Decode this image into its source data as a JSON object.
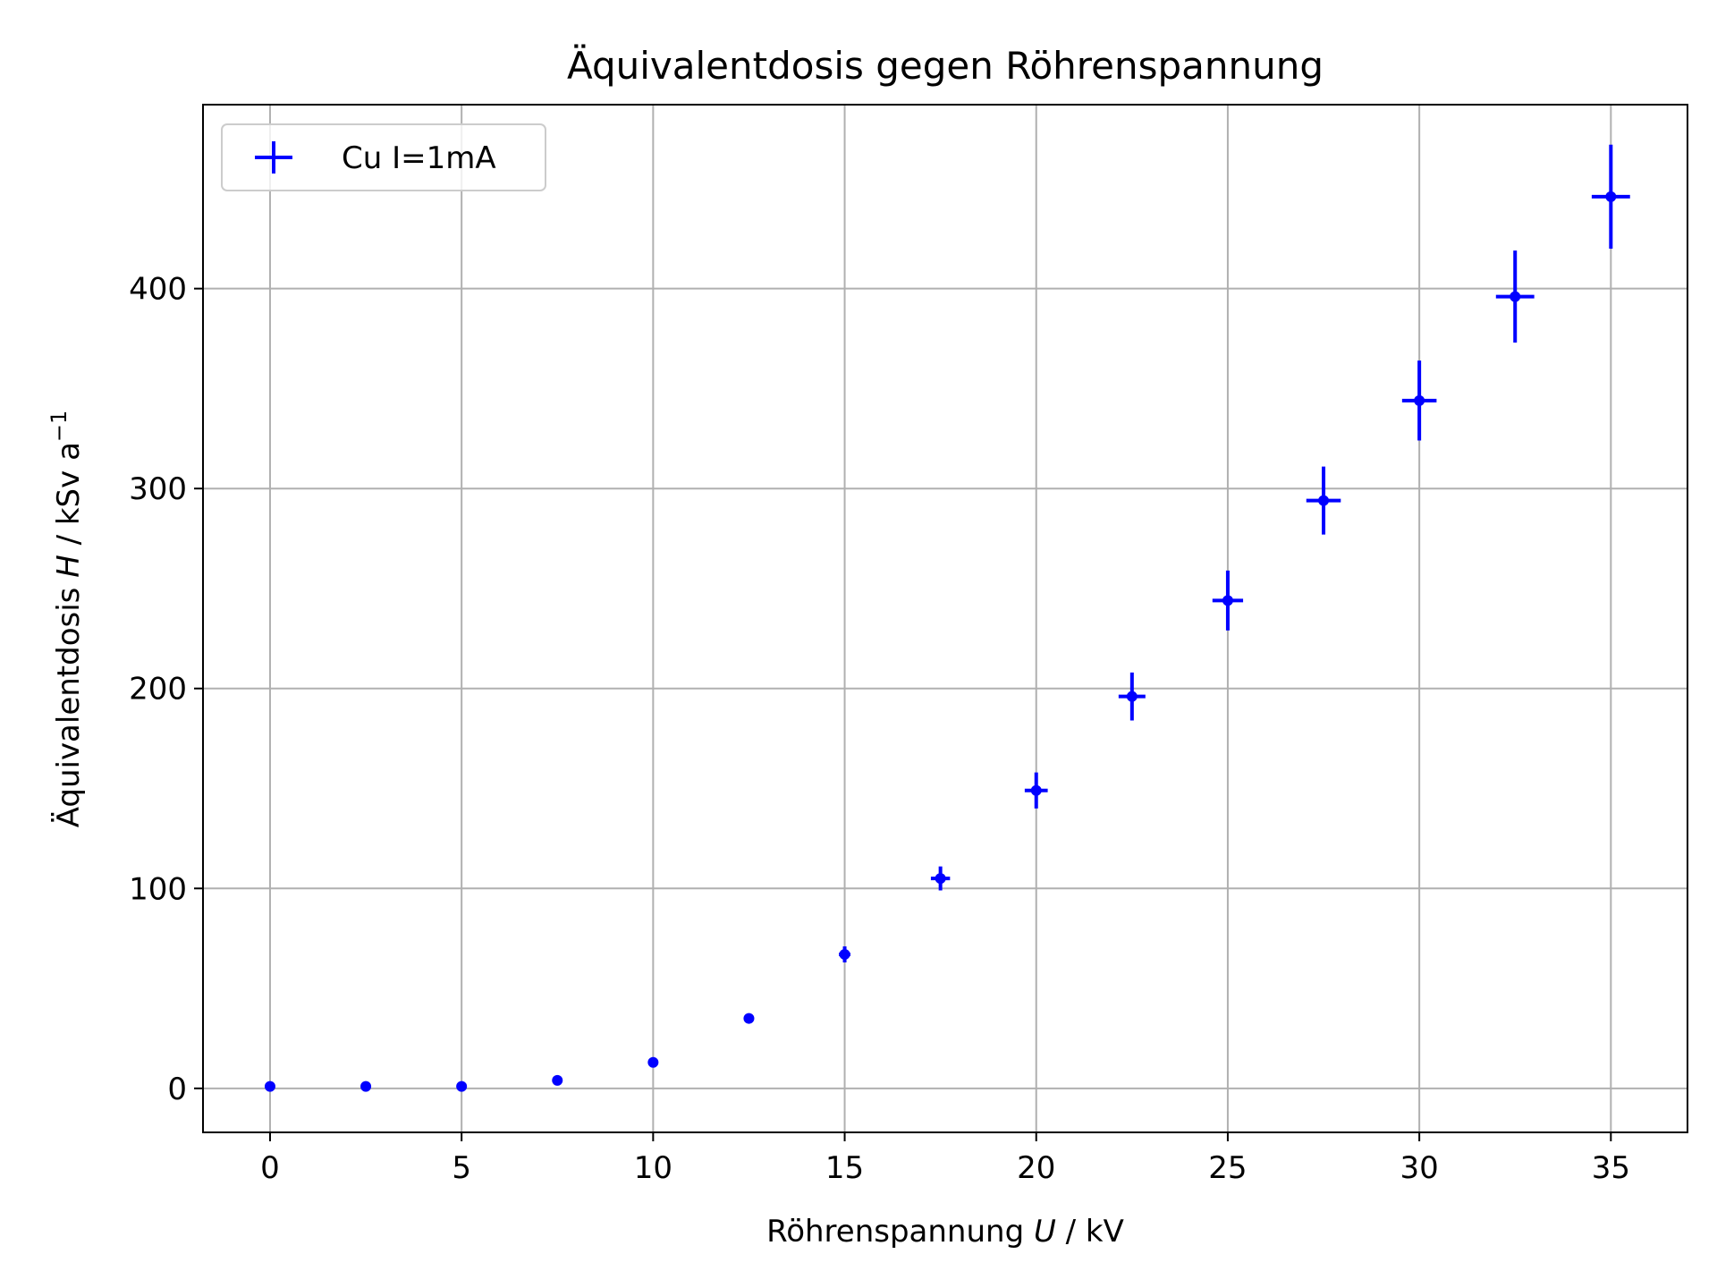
{
  "chart_data": {
    "type": "scatter",
    "title": "Äquivalentdosis gegen Röhrenspannung",
    "xlabel": {
      "prefix": "Röhrenspannung ",
      "symbol": "U",
      "suffix": " / kV"
    },
    "ylabel": {
      "prefix": "Äquivalentdosis ",
      "symbol": "H",
      "suffix": " / kSv a",
      "sup": "−1"
    },
    "xlim": [
      -1.75,
      37.0
    ],
    "ylim": [
      -22,
      492
    ],
    "xticks": [
      0,
      5,
      10,
      15,
      20,
      25,
      30,
      35
    ],
    "yticks": [
      0,
      100,
      200,
      300,
      400
    ],
    "grid": true,
    "legend_position": "upper-left",
    "color": "#0000ff",
    "series": [
      {
        "name": "Cu I=1mA",
        "x": [
          0,
          2.5,
          5,
          7.5,
          10,
          12.5,
          15,
          17.5,
          20,
          22.5,
          25,
          27.5,
          30,
          32.5,
          35
        ],
        "y": [
          1,
          1,
          1,
          4,
          13,
          35,
          67,
          105,
          149,
          196,
          244,
          294,
          344,
          396,
          446
        ],
        "yerr": [
          0,
          0,
          0,
          0.5,
          1.5,
          2,
          4,
          6,
          9,
          12,
          15,
          17,
          20,
          23,
          26
        ],
        "xerr": [
          0,
          0,
          0,
          0,
          0,
          0,
          0.15,
          0.25,
          0.3,
          0.35,
          0.4,
          0.45,
          0.45,
          0.5,
          0.5
        ]
      }
    ]
  }
}
